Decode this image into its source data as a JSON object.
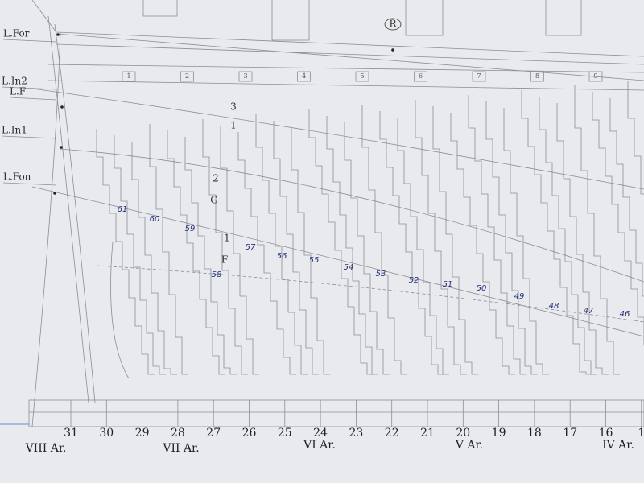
{
  "waterlines": [
    "L.For",
    "L.In2",
    "L.F",
    "L.In1",
    "L.Fon"
  ],
  "frames": [
    "31",
    "30",
    "29",
    "28",
    "27",
    "26",
    "25",
    "24",
    "23",
    "22",
    "21",
    "20",
    "19",
    "18",
    "17",
    "16",
    "1"
  ],
  "sections": [
    "VIII Ar.",
    "VII Ar.",
    "VI Ar.",
    "V Ar.",
    "IV Ar."
  ],
  "plank_numbers": [
    "61",
    "60",
    "59",
    "57",
    "56",
    "55",
    "54",
    "53",
    "52",
    "51",
    "50",
    "49",
    "48",
    "47",
    "46",
    "58"
  ],
  "plank_letters": [
    "3",
    "1",
    "2",
    "G",
    "1",
    "F"
  ],
  "marker": "R",
  "top_numbers": [
    "1",
    "2",
    "3",
    "4",
    "5",
    "6",
    "7",
    "8",
    "9"
  ]
}
